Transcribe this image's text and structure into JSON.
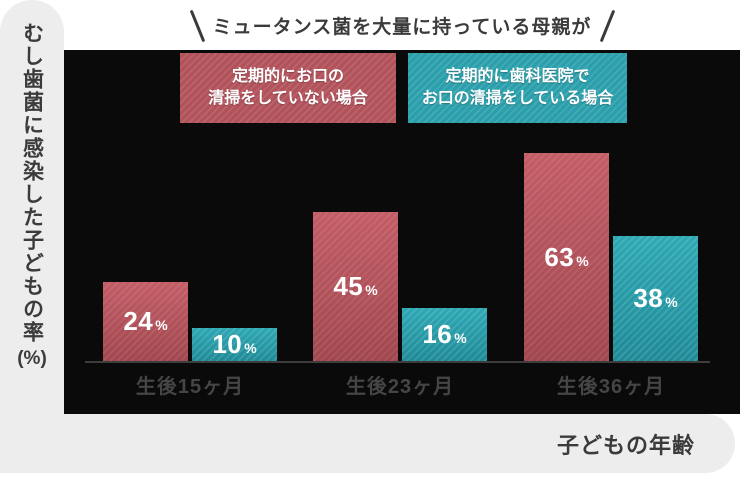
{
  "colors": {
    "panel_bg": "#0a0a0a",
    "frame_bg": "#ededed",
    "dark_text": "#3b3b3b",
    "category_text": "#454545",
    "red_series": "#b2525b",
    "teal_series": "#2b9fab",
    "value_text": "#ffffff"
  },
  "header": {
    "title": "ミュータンス菌を大量に持っている母親が",
    "left_mark_icon": "backslash-mark",
    "right_mark_icon": "slash-mark"
  },
  "legend": {
    "uncleaned": {
      "line1": "定期的にお口の",
      "line2": "清掃をしていない場合"
    },
    "cleaned": {
      "line1": "定期的に歯科医院で",
      "line2": "お口の清掃をしている場合"
    }
  },
  "y_axis": {
    "label": "むし歯菌に感染した子どもの率",
    "unit": "(%)"
  },
  "x_axis": {
    "label": "子どもの年齢"
  },
  "chart_data": {
    "type": "bar",
    "title": "ミュータンス菌を大量に持っている母親が",
    "ylabel": "むし歯菌に感染した子どもの率(%)",
    "xlabel": "子どもの年齢",
    "categories": [
      "生後15ヶ月",
      "生後23ヶ月",
      "生後36ヶ月"
    ],
    "series": [
      {
        "name": "定期的にお口の清掃をしていない場合",
        "color": "#b2525b",
        "values": [
          24,
          45,
          63
        ]
      },
      {
        "name": "定期的に歯科医院でお口の清掃をしている場合",
        "color": "#2b9fab",
        "values": [
          10,
          16,
          38
        ]
      }
    ],
    "unit": "%",
    "ylim": [
      0,
      70
    ],
    "grid": false,
    "legend_position": "top",
    "value_labels_inside_bars": true
  }
}
